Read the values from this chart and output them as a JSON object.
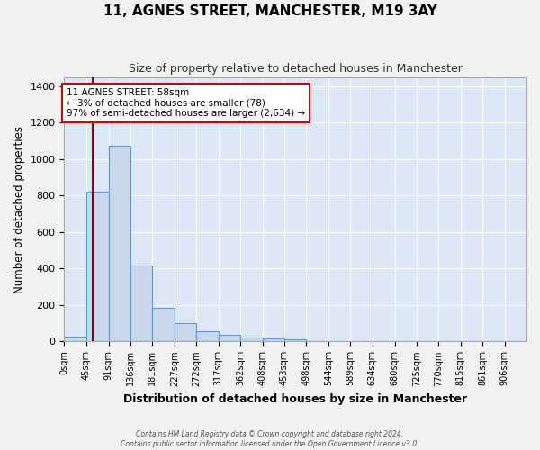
{
  "title": "11, AGNES STREET, MANCHESTER, M19 3AY",
  "subtitle": "Size of property relative to detached houses in Manchester",
  "xlabel": "Distribution of detached houses by size in Manchester",
  "ylabel": "Number of detached properties",
  "bar_values": [
    25,
    820,
    1075,
    415,
    185,
    100,
    55,
    38,
    22,
    15,
    10,
    0,
    0,
    0,
    0,
    0,
    0,
    0,
    0,
    0,
    0
  ],
  "bin_labels": [
    "0sqm",
    "45sqm",
    "91sqm",
    "136sqm",
    "181sqm",
    "227sqm",
    "272sqm",
    "317sqm",
    "362sqm",
    "408sqm",
    "453sqm",
    "498sqm",
    "544sqm",
    "589sqm",
    "634sqm",
    "680sqm",
    "725sqm",
    "770sqm",
    "815sqm",
    "861sqm",
    "906sqm"
  ],
  "bin_edges": [
    0,
    45,
    91,
    136,
    181,
    227,
    272,
    317,
    362,
    408,
    453,
    498,
    544,
    589,
    634,
    680,
    725,
    770,
    815,
    861,
    906,
    951
  ],
  "bar_color": "#c8d8ea",
  "bar_edge_color": "#5b9bd5",
  "property_size": 58,
  "red_line_x": 58,
  "annotation_title": "11 AGNES STREET: 58sqm",
  "annotation_line1": "← 3% of detached houses are smaller (78)",
  "annotation_line2": "97% of semi-detached houses are larger (2,634) →",
  "annotation_box_color": "#ffffff",
  "annotation_box_edge": "#cc0000",
  "red_line_color": "#8b0000",
  "ylim": [
    0,
    1450
  ],
  "yticks": [
    0,
    200,
    400,
    600,
    800,
    1000,
    1200,
    1400
  ],
  "background_color": "#dce8f5",
  "grid_color": "#ffffff",
  "fig_background": "#f2f2f2",
  "footer_line1": "Contains HM Land Registry data © Crown copyright and database right 2024.",
  "footer_line2": "Contains public sector information licensed under the Open Government Licence v3.0."
}
